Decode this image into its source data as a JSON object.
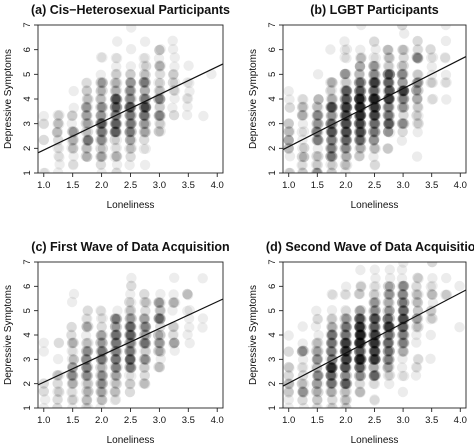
{
  "figure": {
    "x_ticks": [
      "1.0",
      "1.5",
      "2.0",
      "2.5",
      "3.0",
      "3.5",
      "4.0"
    ],
    "y_ticks": [
      "1",
      "2",
      "3",
      "4",
      "5",
      "6",
      "7"
    ]
  },
  "chart_data": [
    {
      "type": "scatter",
      "title": "(a) Cis−Heterosexual Participants",
      "xlabel": "Loneliness",
      "ylabel": "Depressive Symptoms",
      "xlim": [
        0.9,
        4.1
      ],
      "ylim": [
        1,
        7
      ],
      "density": "moderate",
      "point_range": {
        "x": [
          1.0,
          3.9
        ],
        "y": [
          1.0,
          6.9
        ]
      },
      "regression_line": {
        "x": [
          0.9,
          4.1
        ],
        "y": [
          1.82,
          5.42
        ]
      }
    },
    {
      "type": "scatter",
      "title": "(b) LGBT Participants",
      "xlabel": "Loneliness",
      "ylabel": "Depressive Symptoms",
      "xlim": [
        0.9,
        4.1
      ],
      "ylim": [
        1,
        7
      ],
      "density": "high",
      "point_range": {
        "x": [
          1.0,
          4.0
        ],
        "y": [
          1.0,
          7.0
        ]
      },
      "regression_line": {
        "x": [
          0.9,
          4.1
        ],
        "y": [
          1.95,
          5.72
        ]
      }
    },
    {
      "type": "scatter",
      "title": "(c) First Wave of Data Acquisition",
      "xlabel": "Loneliness",
      "ylabel": "Depressive Symptoms",
      "xlim": [
        0.9,
        4.1
      ],
      "ylim": [
        1,
        7
      ],
      "density": "moderate",
      "point_range": {
        "x": [
          1.0,
          4.0
        ],
        "y": [
          1.0,
          7.0
        ]
      },
      "regression_line": {
        "x": [
          0.9,
          4.1
        ],
        "y": [
          1.95,
          5.48
        ]
      }
    },
    {
      "type": "scatter",
      "title": "(d) Second Wave of Data Acquisition",
      "xlabel": "Loneliness",
      "ylabel": "Depressive Symptoms",
      "xlim": [
        0.9,
        4.1
      ],
      "ylim": [
        1,
        7
      ],
      "density": "high",
      "point_range": {
        "x": [
          1.0,
          4.0
        ],
        "y": [
          1.0,
          7.0
        ]
      },
      "regression_line": {
        "x": [
          0.9,
          4.1
        ],
        "y": [
          1.9,
          5.85
        ]
      }
    }
  ]
}
